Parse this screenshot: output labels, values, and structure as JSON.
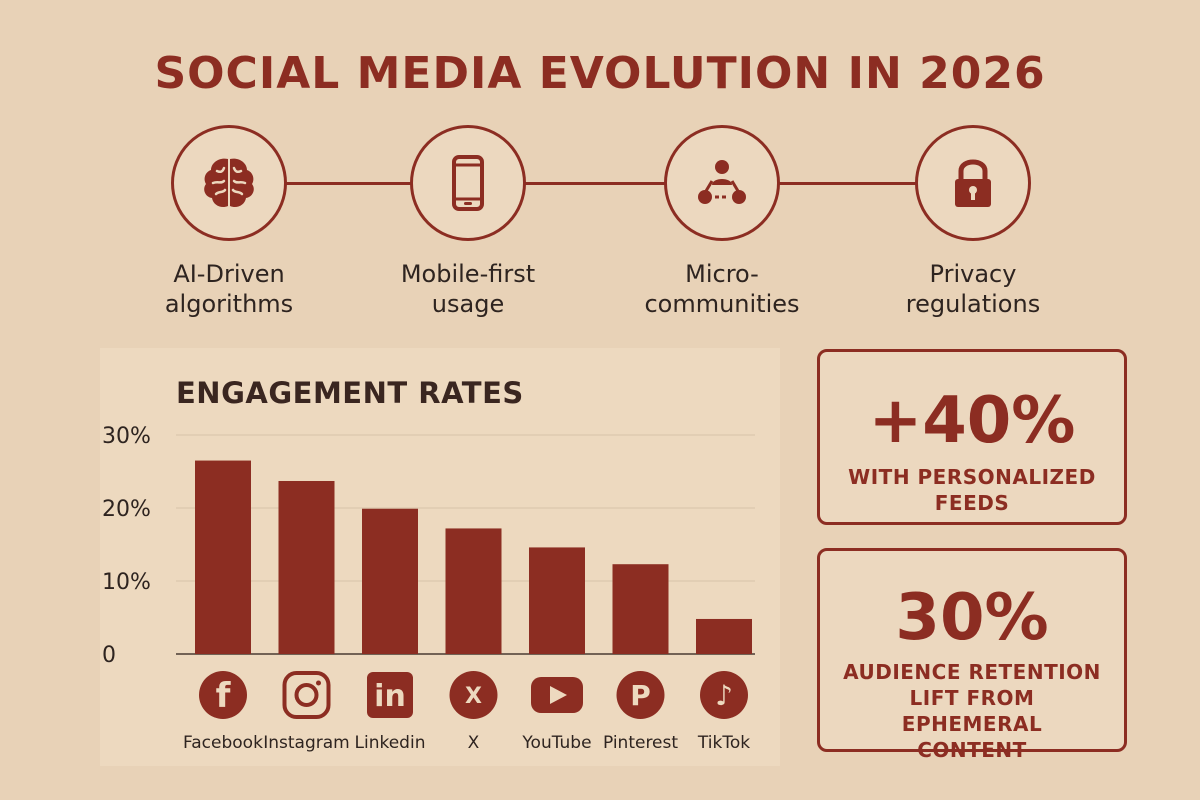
{
  "title": "SOCIAL MEDIA EVOLUTION IN 2026",
  "colors": {
    "background": "#e8d2b7",
    "panel": "#edd9bf",
    "accent": "#8c2d22",
    "text": "#2e2420"
  },
  "features": [
    {
      "icon": "brain-icon",
      "label_line1": "AI-Driven",
      "label_line2": "algorithms"
    },
    {
      "icon": "smartphone-icon",
      "label_line1": "Mobile-first",
      "label_line2": "usage"
    },
    {
      "icon": "community-network-icon",
      "label_line1": "Micro-",
      "label_line2": "communities"
    },
    {
      "icon": "padlock-icon",
      "label_line1": "Privacy",
      "label_line2": "regulations"
    }
  ],
  "chart_data": {
    "type": "bar",
    "title": "ENGAGEMENT RATES",
    "categories": [
      "Facebook",
      "Instagram",
      "Linkedin",
      "X",
      "YouTube",
      "Pinterest",
      "TikTok"
    ],
    "category_icons": [
      "facebook-icon",
      "instagram-icon",
      "linkedin-icon",
      "x-icon",
      "youtube-icon",
      "pinterest-icon",
      "tiktok-icon"
    ],
    "values": [
      26.5,
      23.7,
      19.9,
      17.2,
      14.6,
      12.3,
      4.8
    ],
    "ylim": [
      0,
      30
    ],
    "yticks": [
      0,
      10,
      20,
      30
    ],
    "ytick_labels": [
      "0",
      "10%",
      "20%",
      "30%"
    ],
    "grid": true,
    "bar_color": "#8c2d22"
  },
  "stats": [
    {
      "value": "+40%",
      "desc_line1": "WITH PERSONALIZED",
      "desc_line2": "FEEDS",
      "desc_line3": ""
    },
    {
      "value": "30%",
      "desc_line1": "AUDIENCE RETENTION",
      "desc_line2": "LIFT FROM EPHEMERAL",
      "desc_line3": "CONTENT"
    }
  ]
}
